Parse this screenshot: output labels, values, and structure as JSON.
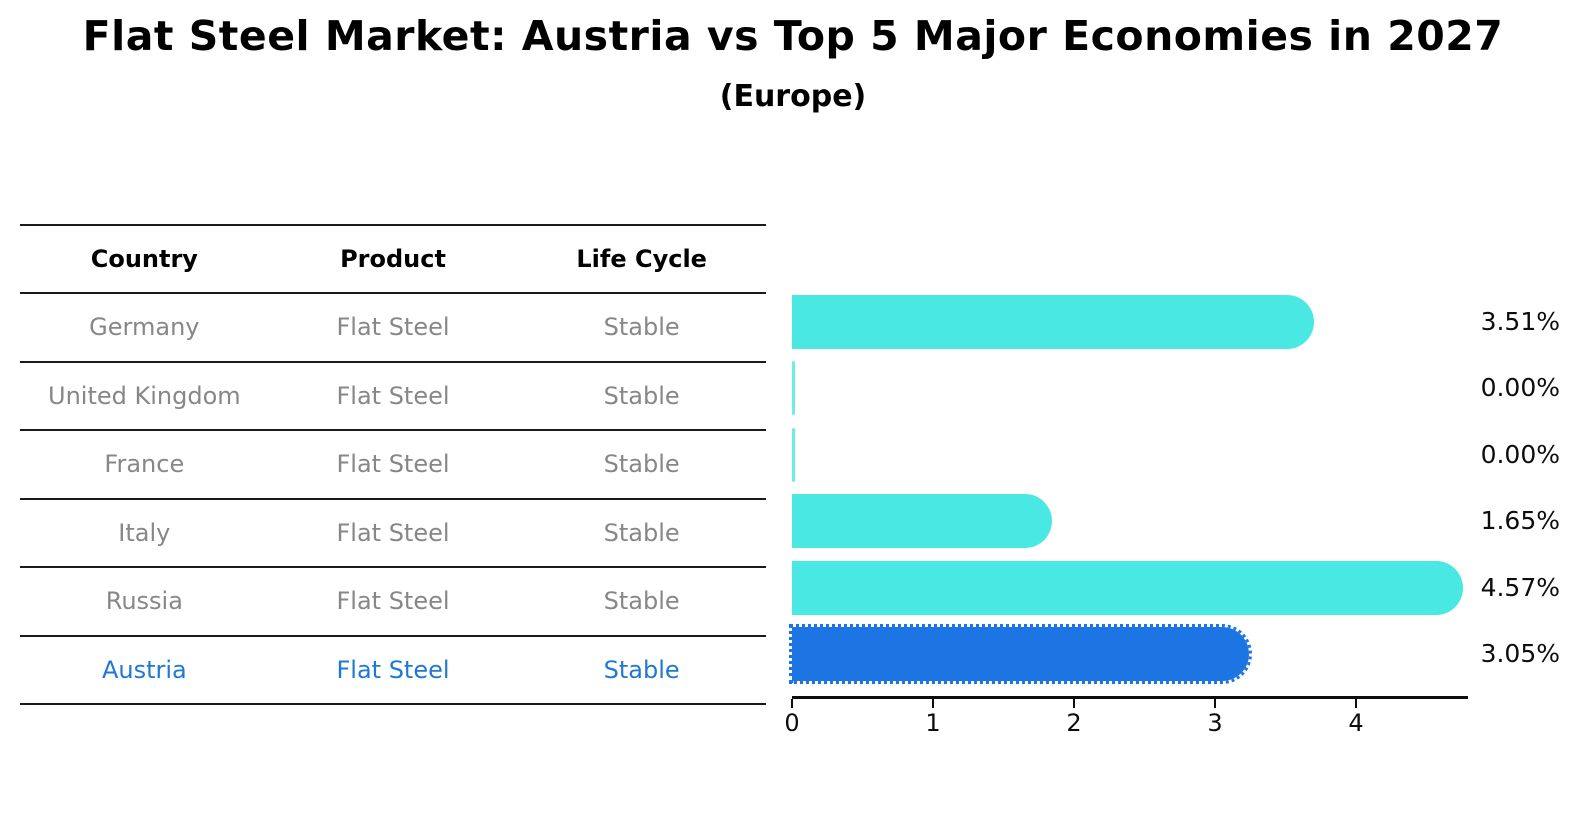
{
  "title": "Flat Steel Market: Austria vs Top 5 Major Economies in 2027",
  "subtitle": "(Europe)",
  "table": {
    "headers": [
      "Country",
      "Product",
      "Life Cycle"
    ],
    "rows": [
      {
        "country": "Germany",
        "product": "Flat Steel",
        "life_cycle": "Stable",
        "highlight": false
      },
      {
        "country": "United Kingdom",
        "product": "Flat Steel",
        "life_cycle": "Stable",
        "highlight": false
      },
      {
        "country": "France",
        "product": "Flat Steel",
        "life_cycle": "Stable",
        "highlight": false
      },
      {
        "country": "Italy",
        "product": "Flat Steel",
        "life_cycle": "Stable",
        "highlight": false
      },
      {
        "country": "Russia",
        "product": "Flat Steel",
        "life_cycle": "Stable",
        "highlight": false
      },
      {
        "country": "Austria",
        "product": "Flat Steel",
        "life_cycle": "Stable",
        "highlight": true
      }
    ]
  },
  "chart_data": {
    "type": "bar",
    "orientation": "horizontal",
    "title": "Flat Steel Market: Austria vs Top 5 Major Economies in 2027",
    "subtitle": "(Europe)",
    "categories": [
      "Germany",
      "United Kingdom",
      "France",
      "Italy",
      "Russia",
      "Austria"
    ],
    "values": [
      3.51,
      0.0,
      0.0,
      1.65,
      4.57,
      3.05
    ],
    "value_labels": [
      "3.51%",
      "0.00%",
      "0.00%",
      "1.65%",
      "4.57%",
      "3.05%"
    ],
    "unit": "%",
    "x_ticks": [
      "0",
      "1",
      "2",
      "3",
      "4"
    ],
    "xlim": [
      0,
      4.8
    ],
    "grid": false,
    "legend": false,
    "highlight_index": 5,
    "colors": {
      "bar": "#4ae8e2",
      "highlight_bar": "#1c75e3",
      "highlight_text": "#1f78d1",
      "row_text": "#878787",
      "header_text": "#000000",
      "value_text": "#0d0d0d"
    }
  }
}
